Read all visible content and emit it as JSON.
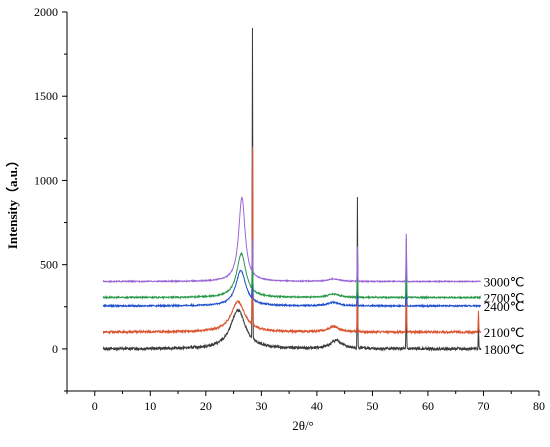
{
  "chart_data": {
    "type": "line",
    "title": "",
    "xlabel": "2θ/°",
    "ylabel": "Intensity（a.u.）",
    "xlim": [
      -5,
      80
    ],
    "ylim": [
      -250,
      2000
    ],
    "x_ticks": [
      0,
      10,
      20,
      30,
      40,
      50,
      60,
      70,
      80
    ],
    "y_ticks": [
      0,
      500,
      1000,
      1500,
      2000
    ],
    "grid": false,
    "legend": "inline labels at right end of each curve",
    "x_range": [
      1.5,
      69.5
    ],
    "series": [
      {
        "name": "1800℃",
        "color": "#3a3a3a",
        "baseline": 0,
        "noise": 8,
        "broad_peaks": [
          {
            "center": 25.8,
            "height": 230,
            "width": 1.6
          },
          {
            "center": 43.5,
            "height": 50,
            "width": 1.2
          }
        ],
        "sharp_peaks": [
          {
            "center": 28.4,
            "height": 1840
          },
          {
            "center": 47.3,
            "height": 895
          },
          {
            "center": 56.1,
            "height": 470
          },
          {
            "center": 69.1,
            "height": 140
          }
        ]
      },
      {
        "name": "2100℃",
        "color": "#d9542f",
        "baseline": 100,
        "noise": 6,
        "broad_peaks": [
          {
            "center": 25.8,
            "height": 180,
            "width": 1.5
          },
          {
            "center": 43.0,
            "height": 30,
            "width": 1.2
          }
        ],
        "sharp_peaks": [
          {
            "center": 28.4,
            "height": 1060
          },
          {
            "center": 47.3,
            "height": 270
          },
          {
            "center": 56.1,
            "height": 360
          },
          {
            "center": 69.1,
            "height": 130
          }
        ]
      },
      {
        "name": "2400℃",
        "color": "#1f4fcc",
        "baseline": 255,
        "noise": 4,
        "broad_peaks": [
          {
            "center": 26.3,
            "height": 210,
            "width": 1.1
          },
          {
            "center": 43.0,
            "height": 20,
            "width": 1.2
          }
        ],
        "sharp_peaks": [
          {
            "center": 28.4,
            "height": 300
          },
          {
            "center": 47.3,
            "height": 270
          },
          {
            "center": 56.1,
            "height": 350
          }
        ]
      },
      {
        "name": "2700℃",
        "color": "#2a9a4a",
        "baseline": 305,
        "noise": 4,
        "broad_peaks": [
          {
            "center": 26.4,
            "height": 260,
            "width": 1.0
          },
          {
            "center": 43.0,
            "height": 20,
            "width": 1.2
          }
        ],
        "sharp_peaks": [
          {
            "center": 28.4,
            "height": 280
          },
          {
            "center": 47.3,
            "height": 270
          },
          {
            "center": 56.1,
            "height": 350
          }
        ]
      },
      {
        "name": "3000℃",
        "color": "#9a66d6",
        "baseline": 400,
        "noise": 3,
        "broad_peaks": [
          {
            "center": 26.5,
            "height": 500,
            "width": 0.7
          },
          {
            "center": 43.0,
            "height": 15,
            "width": 1.2
          }
        ],
        "sharp_peaks": [
          {
            "center": 28.4,
            "height": 190
          },
          {
            "center": 47.3,
            "height": 210
          },
          {
            "center": 56.1,
            "height": 280
          }
        ]
      }
    ]
  }
}
